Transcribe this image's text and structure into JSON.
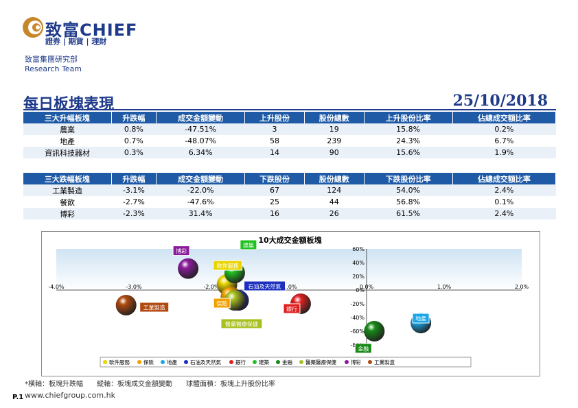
{
  "header": {
    "brand_cn": "致富",
    "brand_en": "CHIEF",
    "tagline": "證券 | 期貨 | 理財",
    "dept_cn": "致富集團研究部",
    "dept_en": "Research Team"
  },
  "report": {
    "title": "每日板塊表現",
    "date": "25/10/2018"
  },
  "up_table": {
    "headers": [
      "三大升幅板塊",
      "升跌幅",
      "成交金額變動",
      "上升股份",
      "股份總數",
      "上升股份比率",
      "佔總成交額比率"
    ],
    "rows": [
      [
        "農業",
        "0.8%",
        "-47.51%",
        "3",
        "19",
        "15.8%",
        "0.2%"
      ],
      [
        "地產",
        "0.7%",
        "-48.07%",
        "58",
        "239",
        "24.3%",
        "6.7%"
      ],
      [
        "資訊科技器材",
        "0.3%",
        "6.34%",
        "14",
        "90",
        "15.6%",
        "1.9%"
      ]
    ]
  },
  "down_table": {
    "headers": [
      "三大跌幅板塊",
      "升跌幅",
      "成交金額變動",
      "下跌股份",
      "股份總數",
      "下跌股份比率",
      "佔總成交額比率"
    ],
    "rows": [
      [
        "工業製造",
        "-3.1%",
        "-22.0%",
        "67",
        "124",
        "54.0%",
        "2.4%"
      ],
      [
        "餐飲",
        "-2.7%",
        "-47.6%",
        "25",
        "44",
        "56.8%",
        "0.1%"
      ],
      [
        "博彩",
        "-2.3%",
        "31.4%",
        "16",
        "26",
        "61.5%",
        "2.4%"
      ]
    ]
  },
  "chart_data": {
    "type": "scatter",
    "title": "10大成交金額板塊",
    "xlim": [
      -4,
      2
    ],
    "ylim": [
      -80,
      60
    ],
    "x_ticks": [
      "-4.0%",
      "-3.0%",
      "-2.0%",
      "-1.0%",
      "0.0%",
      "1.0%",
      "2.0%"
    ],
    "y_ticks": [
      "60%",
      "40%",
      "20%",
      "0%",
      "-20%",
      "-40%",
      "-60%",
      "-80%"
    ],
    "series": [
      {
        "name": "軟件服務",
        "x": -1.8,
        "y": 8,
        "color": "#e8d400"
      },
      {
        "name": "保險",
        "x": -1.75,
        "y": -10,
        "color": "#f2a000"
      },
      {
        "name": "地產",
        "x": 0.7,
        "y": -48.07,
        "color": "#1aa6e6"
      },
      {
        "name": "石油及天然氣",
        "x": -1.65,
        "y": -15,
        "color": "#1c2fbf"
      },
      {
        "name": "銀行",
        "x": -0.85,
        "y": -20,
        "color": "#e02020"
      },
      {
        "name": "建築",
        "x": -1.7,
        "y": 25,
        "color": "#20c020"
      },
      {
        "name": "金融",
        "x": 0.1,
        "y": -60,
        "color": "#188a18"
      },
      {
        "name": "醫藥醫療保健",
        "x": -1.7,
        "y": -15,
        "color": "#a8c020"
      },
      {
        "name": "博彩",
        "x": -2.3,
        "y": 31.4,
        "color": "#8a1c9a"
      },
      {
        "name": "工業製造",
        "x": -3.1,
        "y": -22,
        "color": "#b04a10"
      }
    ]
  },
  "footnote": "*橫軸：板塊升跌幅　　縱軸：板塊成交金額變動　　球體面積：板塊上升股份比率",
  "footer": {
    "url": "www.chiefgroup.com.hk",
    "page": "P.1"
  }
}
